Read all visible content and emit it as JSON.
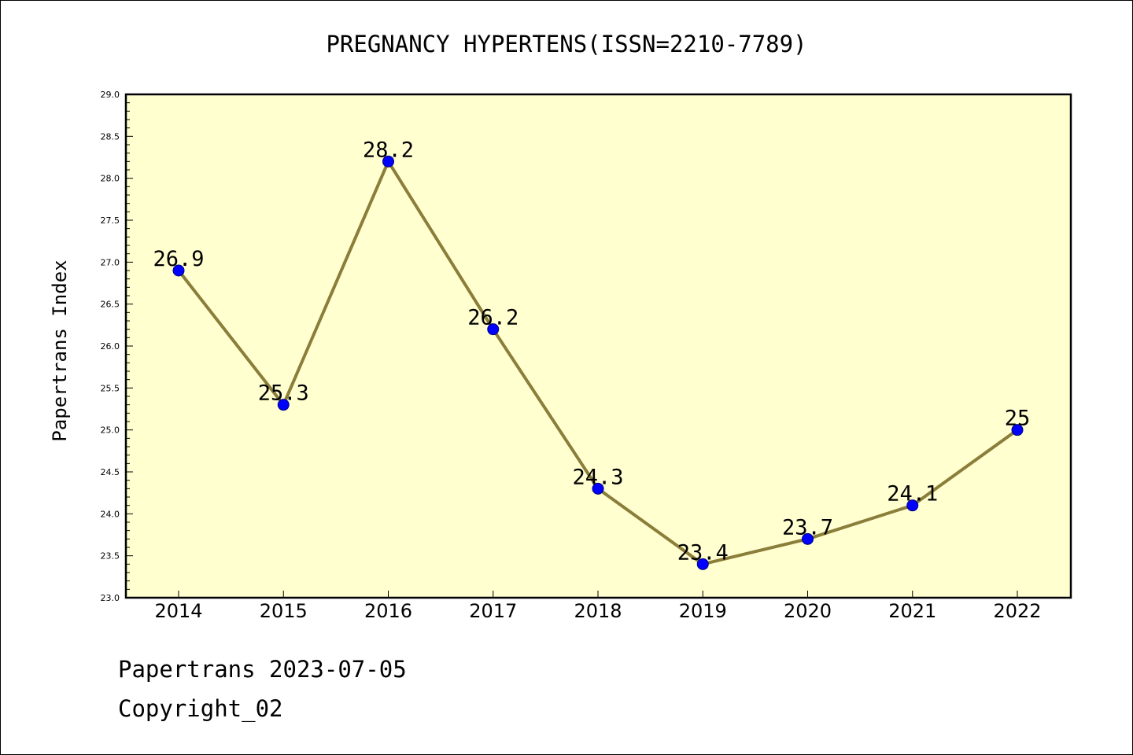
{
  "chart_data": {
    "type": "line",
    "title": "PREGNANCY HYPERTENS(ISSN=2210-7789)",
    "xlabel": "",
    "ylabel": "Papertrans Index",
    "categories": [
      "2014",
      "2015",
      "2016",
      "2017",
      "2018",
      "2019",
      "2020",
      "2021",
      "2022"
    ],
    "series": [
      {
        "values": [
          26.9,
          25.3,
          28.2,
          26.2,
          24.3,
          23.4,
          23.7,
          24.1,
          25.0
        ],
        "data_labels": [
          "26.9",
          "25.3",
          "28.2",
          "26.2",
          "24.3",
          "23.4",
          "23.7",
          "24.1",
          "25"
        ]
      }
    ],
    "ylim": [
      23.0,
      29.0
    ],
    "yticks": [
      "23.0",
      "23.5",
      "24.0",
      "24.5",
      "25.0",
      "25.5",
      "26.0",
      "26.5",
      "27.0",
      "27.5",
      "28.0",
      "28.5",
      "29.0"
    ],
    "grid": false,
    "legend": "none",
    "colors": {
      "plot_background": "#ffffd0",
      "line": "#8b7d3a",
      "marker": "#0000ff",
      "marker_edge": "#000080"
    }
  },
  "footer": {
    "line1": "Papertrans 2023-07-05",
    "line2": "Copyright_02"
  }
}
